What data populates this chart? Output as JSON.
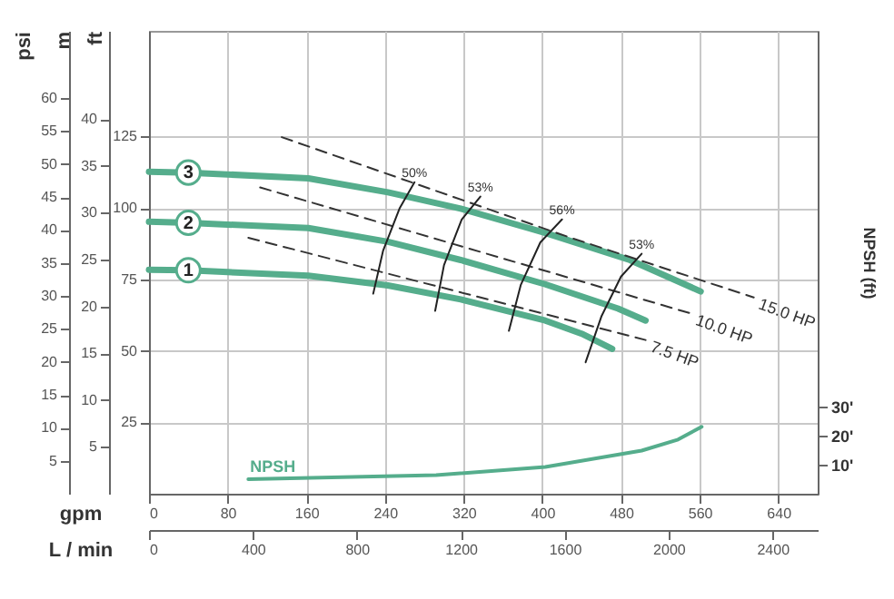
{
  "chart_data": [
    {
      "type": "line",
      "xlabel": "gpm",
      "ylabel": "ft",
      "y2label": "psi",
      "y3label": "m",
      "x2label": "L / min",
      "xlim": [
        0,
        680
      ],
      "xticks": [
        0,
        80,
        160,
        240,
        320,
        400,
        480,
        560,
        640
      ],
      "x2lim": [
        0,
        2574
      ],
      "x2ticks": [
        0,
        400,
        800,
        1200,
        1600,
        2000,
        2400
      ],
      "ylim": [
        0,
        162
      ],
      "yticks": [
        25,
        50,
        75,
        100,
        125
      ],
      "y2lim": [
        0,
        70.2
      ],
      "y2ticks": [
        5,
        10,
        15,
        20,
        25,
        30,
        35,
        40,
        45,
        50,
        55,
        60
      ],
      "y3lim": [
        0,
        49.4
      ],
      "y3ticks": [
        5,
        10,
        15,
        20,
        25,
        30,
        35,
        40
      ],
      "grid": true,
      "series": [
        {
          "name": "3",
          "color": "#55ad8c",
          "x": [
            0,
            40,
            162,
            243,
            317,
            403,
            489,
            561
          ],
          "values": [
            112.7,
            112.4,
            110.4,
            105.5,
            99.8,
            91.3,
            81.8,
            70.8
          ]
        },
        {
          "name": "2",
          "color": "#55ad8c",
          "x": [
            0,
            40,
            162,
            243,
            317,
            403,
            477,
            505
          ],
          "values": [
            95.2,
            94.8,
            93.0,
            88.2,
            81.8,
            73.3,
            64.8,
            60.6
          ]
        },
        {
          "name": "1",
          "color": "#55ad8c",
          "x": [
            0,
            40,
            162,
            243,
            317,
            403,
            440,
            471
          ],
          "values": [
            78.4,
            78.2,
            76.3,
            72.9,
            68.0,
            60.6,
            56.0,
            50.7
          ]
        },
        {
          "name": "15.0 HP",
          "color": "#333333",
          "line_style": "dashed",
          "x": [
            135,
            427,
            615
          ],
          "values": [
            124.8,
            89.8,
            68.7
          ]
        },
        {
          "name": "10.0 HP",
          "color": "#333333",
          "line_style": "dashed",
          "x": [
            113,
            551
          ],
          "values": [
            107.2,
            63.1
          ]
        },
        {
          "name": "7.5 HP",
          "color": "#333333",
          "line_style": "dashed",
          "x": [
            101,
            505
          ],
          "values": [
            89.6,
            53.8
          ]
        },
        {
          "name": "50%",
          "color": "#222222",
          "x": [
            228,
            238,
            255,
            270
          ],
          "values": [
            70,
            85,
            100,
            109
          ]
        },
        {
          "name": "53%",
          "color": "#222222",
          "x": [
            291,
            300,
            318,
            337
          ],
          "values": [
            64,
            80,
            96,
            104
          ]
        },
        {
          "name": "56%",
          "color": "#222222",
          "x": [
            366,
            378,
            398,
            420
          ],
          "values": [
            57,
            73,
            88,
            96
          ]
        },
        {
          "name": "53%",
          "color": "#222222",
          "x": [
            444,
            460,
            480,
            501
          ],
          "values": [
            46,
            62,
            76,
            84
          ]
        }
      ]
    },
    {
      "type": "line",
      "ylabel": "NPSH (ft)",
      "xlim": [
        0,
        680
      ],
      "ylim": [
        0,
        159
      ],
      "yticks": [
        {
          "value": 10,
          "label": "10'"
        },
        {
          "value": 20,
          "label": "20'"
        },
        {
          "value": 30,
          "label": "30'"
        }
      ],
      "tick_labels": "y",
      "series": [
        {
          "name": "NPSH",
          "color": "#55ad8c",
          "x": [
            101,
            292,
            403,
            501,
            538,
            562
          ],
          "values": [
            5,
            6.4,
            9.2,
            14.8,
            18.6,
            23
          ]
        }
      ]
    }
  ]
}
